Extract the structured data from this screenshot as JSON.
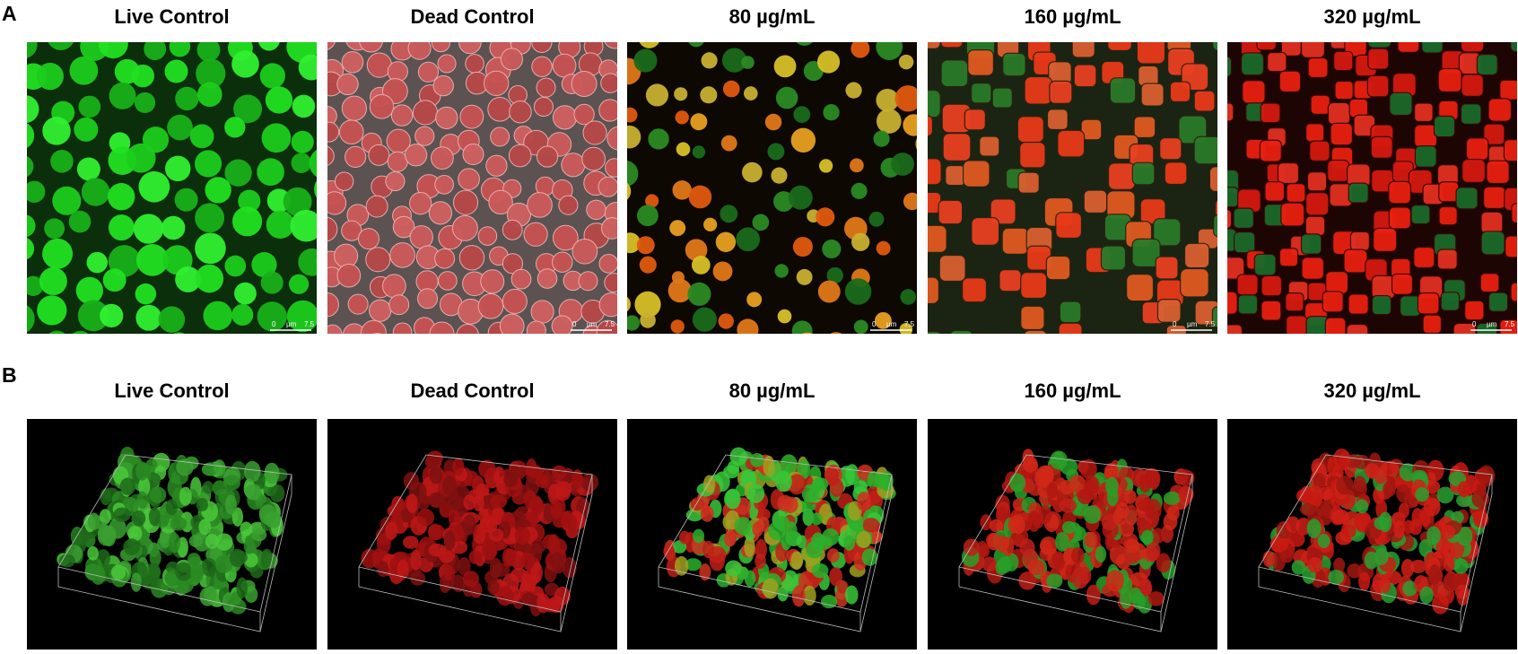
{
  "panels": {
    "A": {
      "label": "A",
      "titles": [
        "Live Control",
        "Dead Control",
        "80 µg/mL",
        "160 µg/mL",
        "320 µg/mL"
      ],
      "scale_bar": {
        "start": "0",
        "unit": "µm",
        "end": "7.5"
      }
    },
    "B": {
      "label": "B",
      "titles": [
        "Live Control",
        "Dead Control",
        "80 µg/mL",
        "160 µg/mL",
        "320 µg/mL"
      ]
    }
  }
}
